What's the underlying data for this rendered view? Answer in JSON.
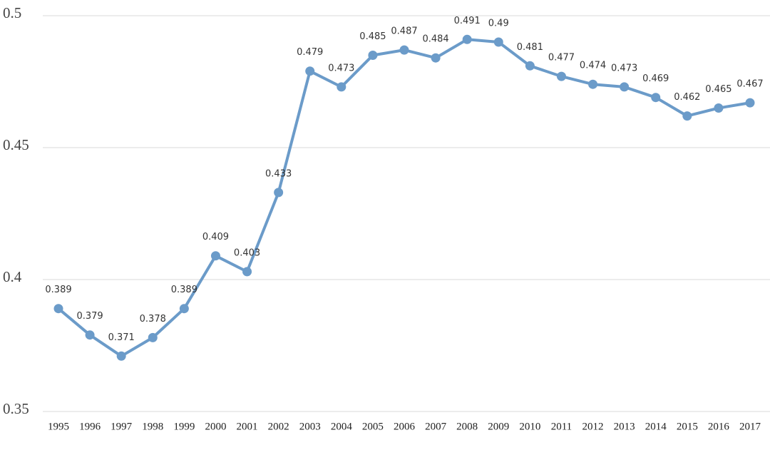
{
  "chart_data": {
    "type": "line",
    "categories": [
      "1995",
      "1996",
      "1997",
      "1998",
      "1999",
      "2000",
      "2001",
      "2002",
      "2003",
      "2004",
      "2005",
      "2006",
      "2007",
      "2008",
      "2009",
      "2010",
      "2011",
      "2012",
      "2013",
      "2014",
      "2015",
      "2016",
      "2017"
    ],
    "values": [
      0.389,
      0.379,
      0.371,
      0.378,
      0.389,
      0.409,
      0.403,
      0.433,
      0.479,
      0.473,
      0.485,
      0.487,
      0.484,
      0.491,
      0.49,
      0.481,
      0.477,
      0.474,
      0.473,
      0.469,
      0.462,
      0.465,
      0.467
    ],
    "color": "#6b9bc9",
    "ylim": [
      0.35,
      0.5
    ],
    "yticks": [
      0.35,
      0.4,
      0.45,
      0.5
    ],
    "grid": true
  }
}
